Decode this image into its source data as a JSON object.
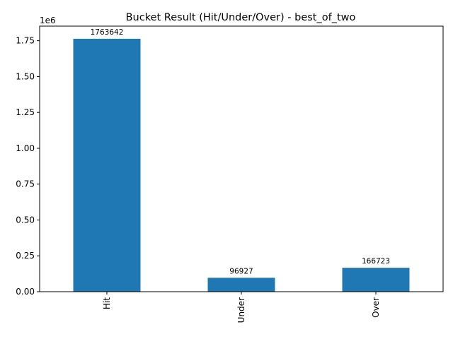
{
  "chart_data": {
    "type": "bar",
    "title": "Bucket Result (Hit/Under/Over) - best_of_two",
    "xlabel": "",
    "ylabel": "",
    "categories": [
      "Hit",
      "Under",
      "Over"
    ],
    "values": [
      1763642,
      96927,
      166723
    ],
    "data_labels": [
      "1763642",
      "96927",
      "166723"
    ],
    "ylim": [
      0,
      1851824
    ],
    "yticks": [
      0,
      250000,
      500000,
      750000,
      1000000,
      1250000,
      1500000,
      1750000
    ],
    "ytick_labels": [
      "0.00",
      "0.25",
      "0.50",
      "0.75",
      "1.00",
      "1.25",
      "1.50",
      "1.75"
    ],
    "y_offset_label": "1e6",
    "bar_color": "#1f77b4",
    "grid": false,
    "legend": "none",
    "x_tick_rotation": "vertical"
  }
}
